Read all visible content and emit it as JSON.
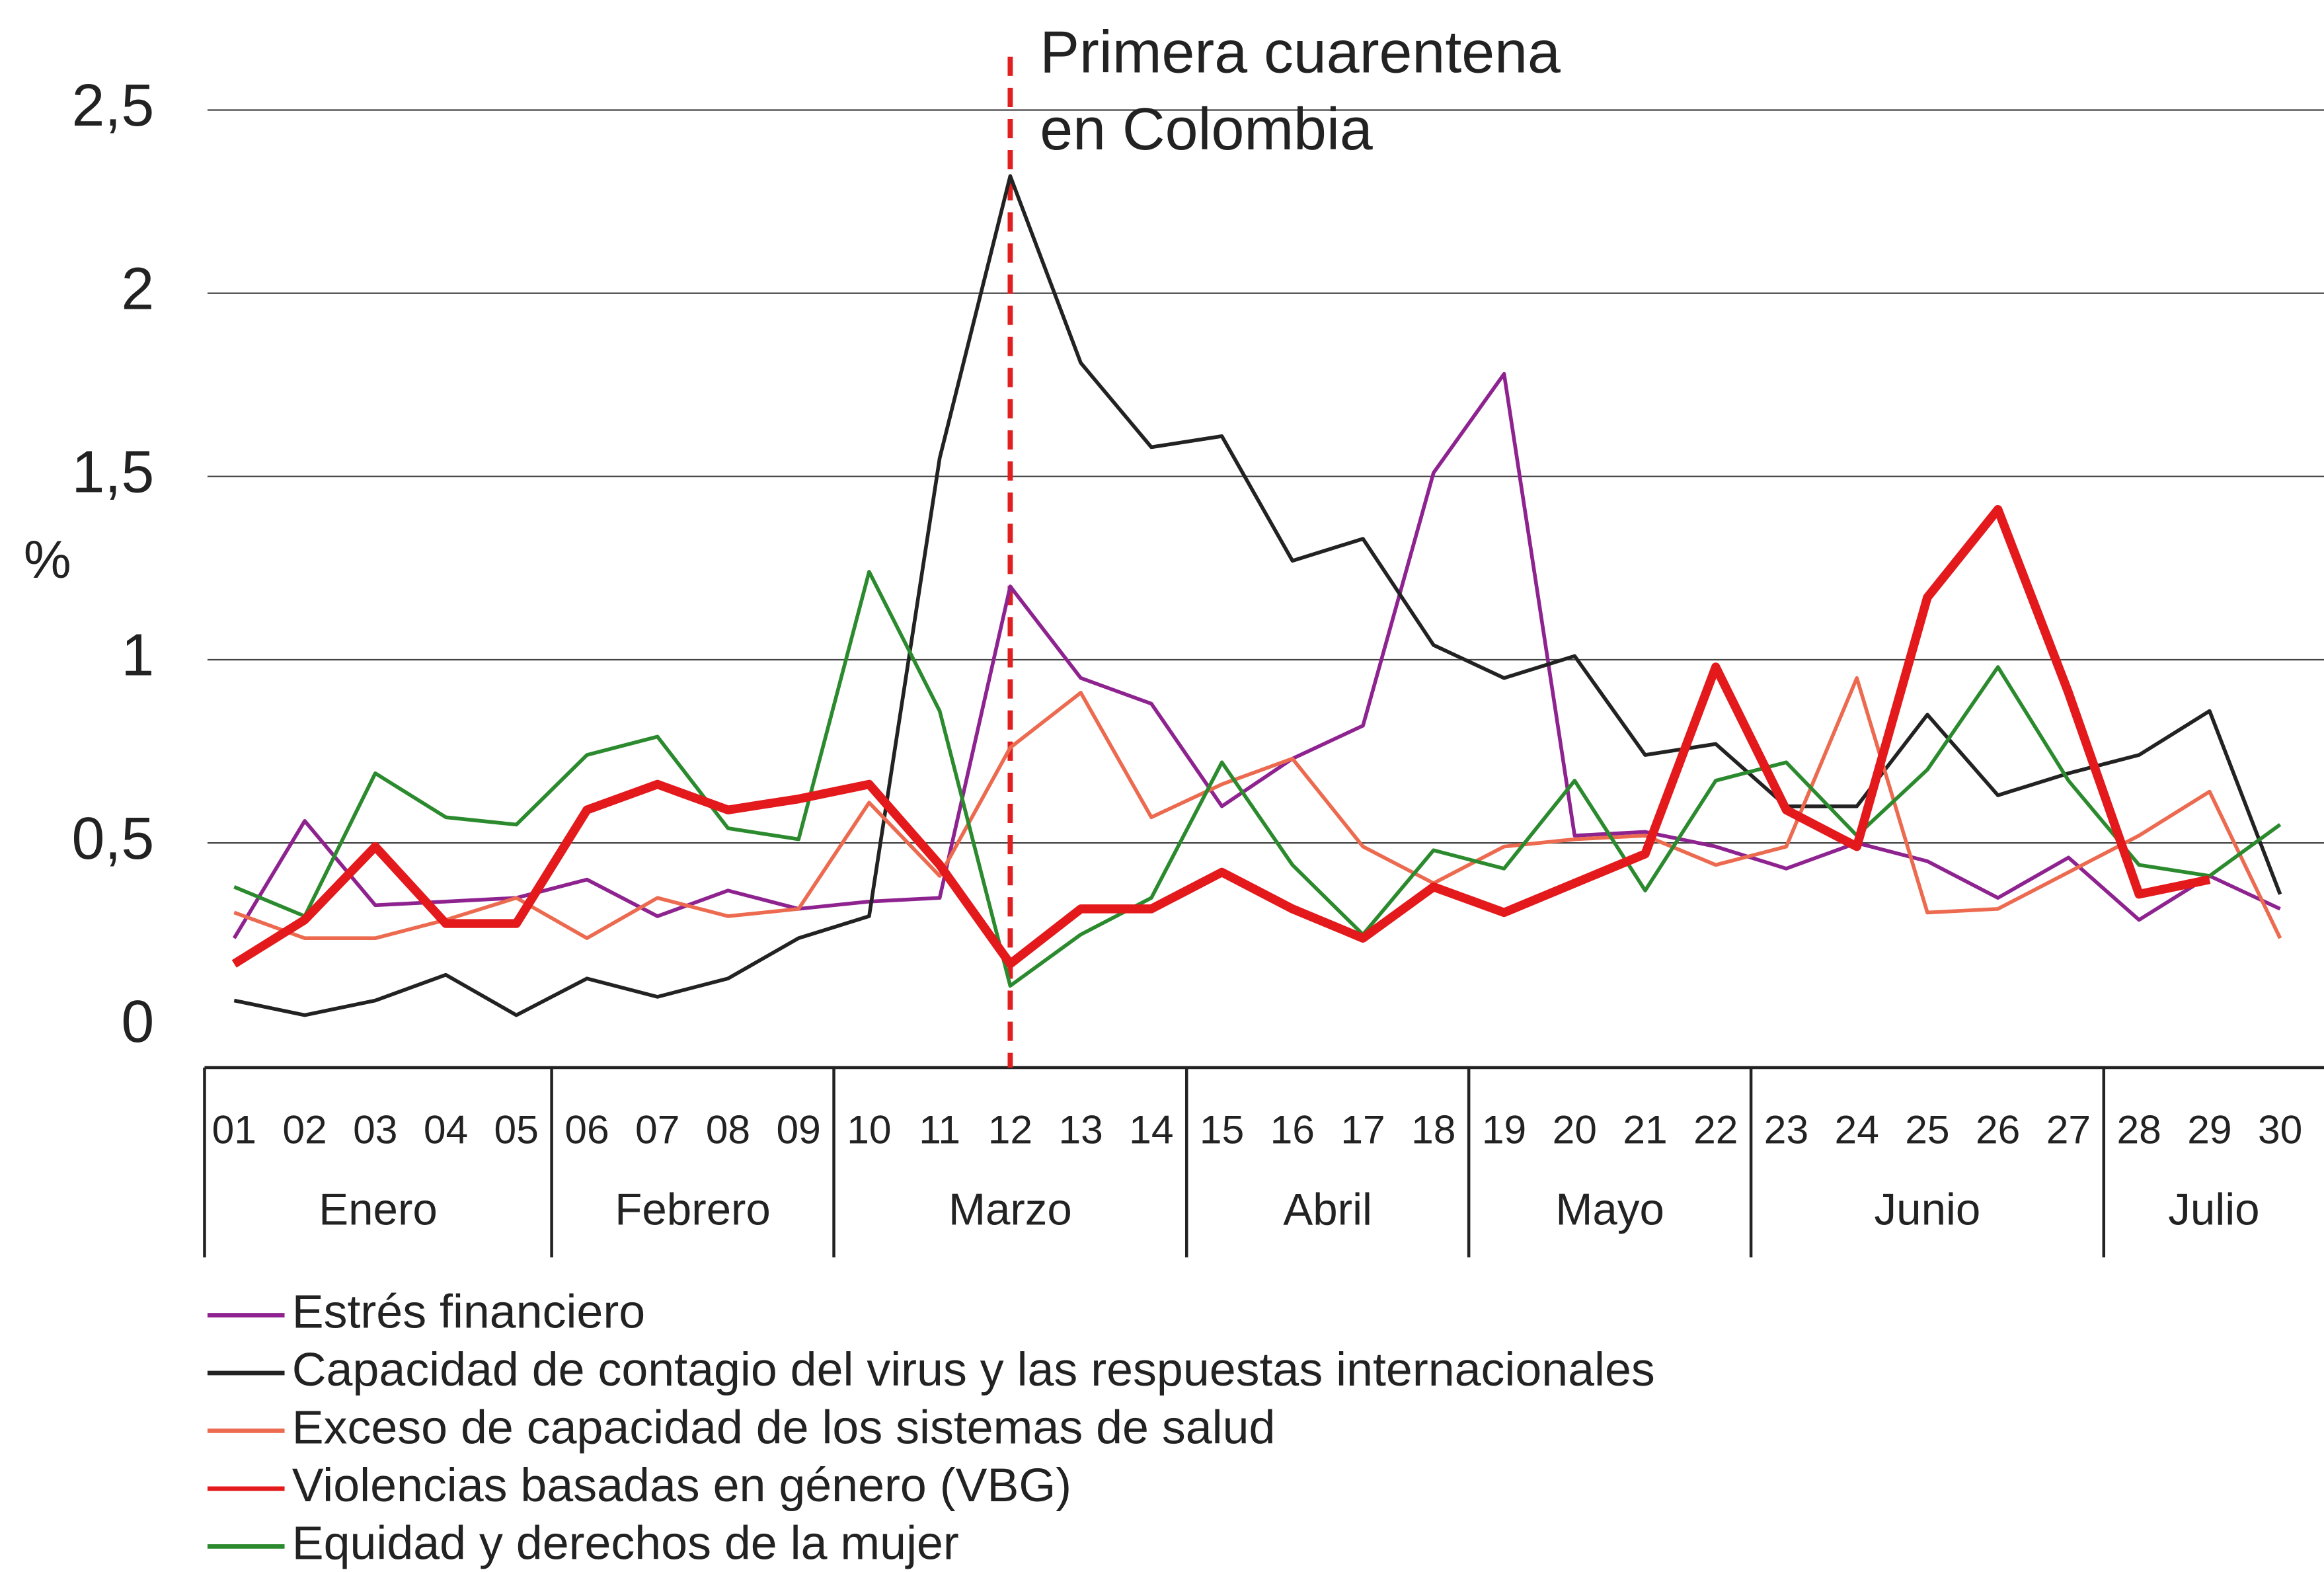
{
  "chart_data": {
    "type": "line",
    "ylabel": "%",
    "annotation": {
      "text": [
        "Primera cuarentena",
        "en Colombia"
      ],
      "x": "12",
      "color": "#e02020"
    },
    "categories": [
      "01",
      "02",
      "03",
      "04",
      "05",
      "06",
      "07",
      "08",
      "09",
      "10",
      "11",
      "12",
      "13",
      "14",
      "15",
      "16",
      "17",
      "18",
      "19",
      "20",
      "21",
      "22",
      "23",
      "24",
      "25",
      "26",
      "27",
      "28",
      "29",
      "30"
    ],
    "groups": [
      {
        "label": "Enero",
        "start": "01",
        "end": "05"
      },
      {
        "label": "Febrero",
        "start": "06",
        "end": "09"
      },
      {
        "label": "Marzo",
        "start": "10",
        "end": "14"
      },
      {
        "label": "Abril",
        "start": "15",
        "end": "18"
      },
      {
        "label": "Mayo",
        "start": "19",
        "end": "22"
      },
      {
        "label": "Junio",
        "start": "23",
        "end": "27"
      },
      {
        "label": "Julio",
        "start": "28",
        "end": "30"
      }
    ],
    "ylim": [
      0,
      2.5
    ],
    "yticks": [
      0,
      {
        "value": 0.5,
        "label": "0,5"
      },
      1,
      {
        "value": 1.5,
        "label": "1,5"
      },
      2,
      {
        "value": 2.5,
        "label": "2,5"
      }
    ],
    "grid": true,
    "series": [
      {
        "name": "Estrés financiero",
        "color": "#8e2390",
        "width": 2.5,
        "values": [
          0.24,
          0.56,
          0.33,
          0.34,
          0.35,
          0.4,
          0.3,
          0.37,
          0.32,
          0.34,
          0.35,
          1.2,
          0.95,
          0.88,
          0.6,
          0.73,
          0.82,
          1.51,
          1.78,
          0.52,
          0.53,
          0.49,
          0.43,
          0.5,
          0.45,
          0.35,
          0.46,
          0.29,
          0.41,
          0.32
        ]
      },
      {
        "name": "Capacidad de contagio del virus y las respuestas internacionales",
        "color": "#222222",
        "width": 2.5,
        "values": [
          0.07,
          0.03,
          0.07,
          0.14,
          0.03,
          0.13,
          0.08,
          0.13,
          0.24,
          0.3,
          1.55,
          2.32,
          1.81,
          1.58,
          1.61,
          1.27,
          1.33,
          1.04,
          0.95,
          1.01,
          0.74,
          0.77,
          0.6,
          0.6,
          0.85,
          0.63,
          0.69,
          0.74,
          0.86,
          0.36
        ]
      },
      {
        "name": "Exceso de capacidad de los sistemas de salud",
        "color": "#ec6a4f",
        "width": 2.5,
        "values": [
          0.31,
          0.24,
          0.24,
          0.29,
          0.35,
          0.24,
          0.35,
          0.3,
          0.32,
          0.61,
          0.41,
          0.76,
          0.91,
          0.57,
          0.66,
          0.73,
          0.49,
          0.39,
          0.49,
          0.51,
          0.52,
          0.44,
          0.49,
          0.95,
          0.31,
          0.32,
          0.42,
          0.52,
          0.64,
          0.24
        ]
      },
      {
        "name": "Violencias basadas en género (VBG)",
        "color": "#e3191c",
        "width": 6,
        "values": [
          0.17,
          0.29,
          0.49,
          0.28,
          0.28,
          0.59,
          0.66,
          0.59,
          0.62,
          0.66,
          0.44,
          0.17,
          0.32,
          0.32,
          0.42,
          0.32,
          0.24,
          0.38,
          0.31,
          0.39,
          0.47,
          0.98,
          0.59,
          0.49,
          1.17,
          1.41,
          0.91,
          0.36,
          0.4,
          null
        ]
      },
      {
        "name": "Equidad y derechos de la mujer",
        "color": "#2b8a2e",
        "width": 2.5,
        "values": [
          0.38,
          0.3,
          0.69,
          0.57,
          0.55,
          0.74,
          0.79,
          0.54,
          0.51,
          1.24,
          0.86,
          0.11,
          0.25,
          0.35,
          0.72,
          0.44,
          0.25,
          0.48,
          0.43,
          0.67,
          0.37,
          0.67,
          0.72,
          0.52,
          0.7,
          0.98,
          0.67,
          0.44,
          0.41,
          0.55
        ]
      }
    ]
  }
}
